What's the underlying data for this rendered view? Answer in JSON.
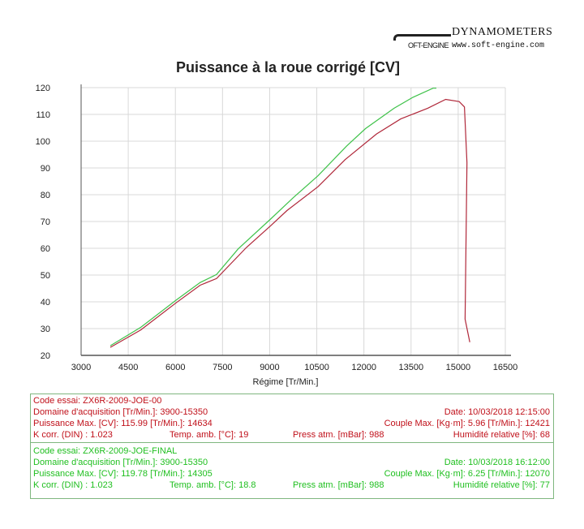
{
  "logo": {
    "brand": "DYNAMOMETERS",
    "sub": "OFT-ENGINE",
    "url": "www.soft-engine.com"
  },
  "colors": {
    "run1": "#b0283a",
    "run2": "#3fc24a",
    "grid": "#d8d8d8",
    "axis": "#555555"
  },
  "chart_data": {
    "type": "line",
    "title": "Puissance à la roue corrigé [CV]",
    "xlabel": "Régime [Tr/Min.]",
    "ylabel": "",
    "xlim": [
      3000,
      16500
    ],
    "ylim": [
      20,
      120
    ],
    "xticks": [
      3000,
      4500,
      6000,
      7500,
      9000,
      10500,
      12000,
      13500,
      15000,
      16500
    ],
    "yticks": [
      20,
      30,
      40,
      50,
      60,
      70,
      80,
      90,
      100,
      110,
      120
    ],
    "grid": true,
    "series": [
      {
        "color": "#b0283a",
        "points": [
          [
            3930,
            23.0
          ],
          [
            4900,
            29.5
          ],
          [
            6020,
            39.6
          ],
          [
            6790,
            46.2
          ],
          [
            7310,
            48.7
          ],
          [
            8260,
            60.3
          ],
          [
            9030,
            68.4
          ],
          [
            9550,
            74.1
          ],
          [
            10540,
            83.0
          ],
          [
            11400,
            93.1
          ],
          [
            12400,
            102.7
          ],
          [
            13170,
            108.3
          ],
          [
            14030,
            112.3
          ],
          [
            14600,
            115.6
          ],
          [
            15030,
            114.8
          ],
          [
            15200,
            112.8
          ],
          [
            15280,
            92.0
          ],
          [
            15220,
            33.5
          ],
          [
            15370,
            24.9
          ]
        ]
      },
      {
        "color": "#3fc24a",
        "points": [
          [
            3930,
            23.6
          ],
          [
            4900,
            30.5
          ],
          [
            6020,
            40.6
          ],
          [
            6790,
            47.2
          ],
          [
            7310,
            50.2
          ],
          [
            8000,
            59.8
          ],
          [
            9030,
            70.9
          ],
          [
            9760,
            79.0
          ],
          [
            10540,
            87.1
          ],
          [
            11450,
            98.2
          ],
          [
            12050,
            104.7
          ],
          [
            12960,
            112.3
          ],
          [
            13560,
            116.4
          ],
          [
            14200,
            119.8
          ],
          [
            14305,
            119.78
          ]
        ]
      }
    ]
  },
  "runs": [
    {
      "code": "Code essai: ZX6R-2009-JOE-00",
      "domaine": "Domaine d'acquisition [Tr/Min.]: 3900-15350",
      "date": "Date: 10/03/2018   12:15:00",
      "puissance": "Puissance Max. [CV]: 115.99   [Tr/Min.]: 14634",
      "couple": "Couple Max. [Kg·m]: 5.96   [Tr/Min.]: 12421",
      "kcorr": "K corr. (DIN) : 1.023",
      "temp": "Temp. amb. [°C]: 19",
      "press": "Press atm. [mBar]: 988",
      "humid": "Humidité relative [%]: 68"
    },
    {
      "code": "Code essai: ZX6R-2009-JOE-FINAL",
      "domaine": "Domaine d'acquisition [Tr/Min.]: 3900-15350",
      "date": "Date: 10/03/2018   16:12:00",
      "puissance": "Puissance Max. [CV]: 119.78   [Tr/Min.]: 14305",
      "couple": "Couple Max. [Kg·m]: 6.25   [Tr/Min.]: 12070",
      "kcorr": "K corr. (DIN) : 1.023",
      "temp": "Temp. amb. [°C]: 18.8",
      "press": "Press atm. [mBar]: 988",
      "humid": "Humidité relative [%]: 77"
    }
  ]
}
